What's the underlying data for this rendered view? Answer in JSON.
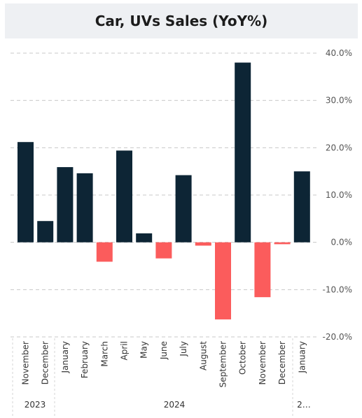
{
  "chart_data": {
    "type": "bar",
    "title": "Car, UVs Sales (YoY%)",
    "categories": [
      "November",
      "December",
      "January",
      "February",
      "March",
      "April",
      "May",
      "June",
      "July",
      "August",
      "September",
      "October",
      "November",
      "December",
      "January"
    ],
    "values": [
      21.2,
      4.5,
      15.9,
      14.6,
      -4.1,
      19.4,
      1.9,
      -3.4,
      14.2,
      -0.7,
      -16.3,
      38.0,
      -11.6,
      -0.4,
      15.0
    ],
    "years": [
      {
        "label": "2023",
        "start": 0,
        "end": 1
      },
      {
        "label": "2024",
        "start": 2,
        "end": 13
      },
      {
        "label": "2…",
        "start": 14,
        "end": 14
      }
    ],
    "ylim": [
      -20,
      40
    ],
    "yticks": [
      -20,
      -10,
      0,
      10,
      20,
      30,
      40
    ],
    "ytick_labels": [
      "-20.0%",
      "-10.0%",
      "0.0%",
      "10.0%",
      "20.0%",
      "30.0%",
      "40.0%"
    ],
    "grid": true,
    "colors": {
      "positive": "#0d2535",
      "negative": "#fb5c5c",
      "grid": "#c8c8c8"
    }
  }
}
